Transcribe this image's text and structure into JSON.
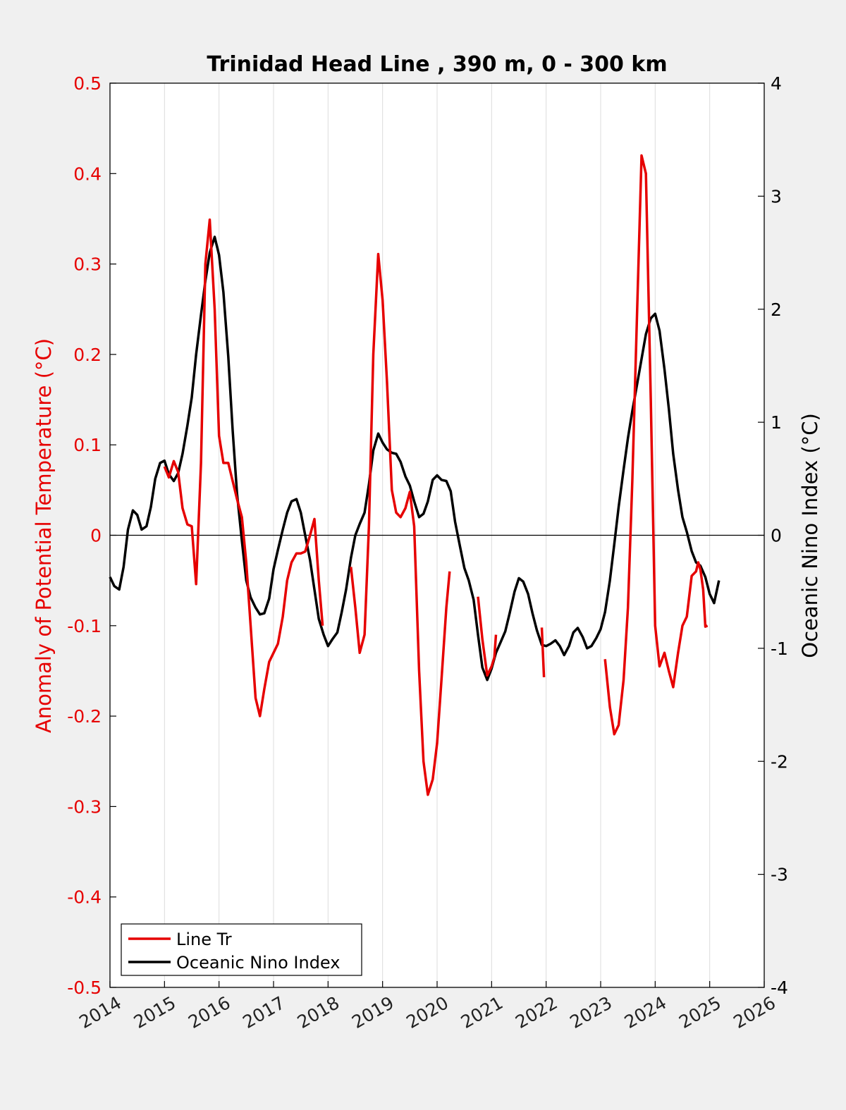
{
  "chart_data": {
    "type": "line",
    "title": "Trinidad Head Line , 390 m, 0 - 300 km",
    "ylabel_left": "Anomaly of Potential Temperature (°C)",
    "ylabel_right": "Oceanic Nino Index (°C)",
    "xlim": [
      2014,
      2026
    ],
    "ylim_left": [
      -0.5,
      0.5
    ],
    "ylim_right": [
      -4,
      4
    ],
    "x_ticks": [
      "2014",
      "2015",
      "2016",
      "2017",
      "2018",
      "2019",
      "2020",
      "2021",
      "2022",
      "2023",
      "2024",
      "2025",
      "2026"
    ],
    "y_left_ticks": [
      "0.5",
      "0.4",
      "0.3",
      "0.2",
      "0.1",
      "0",
      "-0.1",
      "-0.2",
      "-0.3",
      "-0.4",
      "-0.5"
    ],
    "y_right_ticks": [
      "4",
      "3",
      "2",
      "1",
      "0",
      "-1",
      "-2",
      "-3",
      "-4"
    ],
    "grid": "vertical",
    "legend_position": "bottom-left",
    "colors": {
      "line_tr": "#e60000",
      "oni": "#000000",
      "zero_line": "#000000",
      "grid": "#dcdcdc",
      "axes_bg": "#ffffff",
      "figure_bg": "#f0f0f0"
    },
    "series": [
      {
        "name": "Line Tr",
        "axis": "left",
        "segments": [
          [
            [
              2015.0,
              0.076
            ],
            [
              2015.08,
              0.064
            ],
            [
              2015.17,
              0.082
            ],
            [
              2015.25,
              0.07
            ],
            [
              2015.33,
              0.03
            ],
            [
              2015.42,
              0.012
            ],
            [
              2015.5,
              0.01
            ],
            [
              2015.58,
              -0.054
            ],
            [
              2015.67,
              0.08
            ],
            [
              2015.75,
              0.3
            ],
            [
              2015.83,
              0.349
            ],
            [
              2015.92,
              0.25
            ],
            [
              2016.0,
              0.11
            ],
            [
              2016.08,
              0.08
            ],
            [
              2016.17,
              0.08
            ],
            [
              2016.25,
              0.06
            ],
            [
              2016.33,
              0.04
            ],
            [
              2016.42,
              0.02
            ],
            [
              2016.5,
              -0.03
            ],
            [
              2016.58,
              -0.1
            ],
            [
              2016.67,
              -0.18
            ],
            [
              2016.75,
              -0.2
            ],
            [
              2016.83,
              -0.17
            ],
            [
              2016.92,
              -0.14
            ],
            [
              2017.0,
              -0.13
            ],
            [
              2017.08,
              -0.12
            ],
            [
              2017.17,
              -0.09
            ],
            [
              2017.25,
              -0.05
            ],
            [
              2017.33,
              -0.03
            ],
            [
              2017.42,
              -0.02
            ],
            [
              2017.5,
              -0.02
            ],
            [
              2017.58,
              -0.018
            ],
            [
              2017.67,
              0.0
            ],
            [
              2017.75,
              0.018
            ],
            [
              2017.83,
              -0.05
            ],
            [
              2017.9,
              -0.1
            ]
          ],
          [
            [
              2018.42,
              -0.035
            ],
            [
              2018.5,
              -0.08
            ],
            [
              2018.58,
              -0.13
            ],
            [
              2018.67,
              -0.11
            ],
            [
              2018.75,
              0.01
            ],
            [
              2018.83,
              0.2
            ],
            [
              2018.92,
              0.311
            ],
            [
              2019.0,
              0.26
            ],
            [
              2019.08,
              0.17
            ],
            [
              2019.17,
              0.05
            ],
            [
              2019.25,
              0.025
            ],
            [
              2019.33,
              0.02
            ],
            [
              2019.42,
              0.03
            ],
            [
              2019.5,
              0.048
            ],
            [
              2019.58,
              0.01
            ],
            [
              2019.67,
              -0.15
            ],
            [
              2019.75,
              -0.25
            ],
            [
              2019.83,
              -0.287
            ],
            [
              2019.92,
              -0.27
            ],
            [
              2020.0,
              -0.23
            ],
            [
              2020.08,
              -0.16
            ],
            [
              2020.17,
              -0.08
            ],
            [
              2020.23,
              -0.04
            ]
          ],
          [
            [
              2020.75,
              -0.068
            ],
            [
              2020.83,
              -0.115
            ],
            [
              2020.92,
              -0.155
            ],
            [
              2021.0,
              -0.145
            ],
            [
              2021.05,
              -0.135
            ],
            [
              2021.08,
              -0.11
            ]
          ],
          [
            [
              2021.92,
              -0.102
            ],
            [
              2021.96,
              -0.157
            ]
          ],
          [
            [
              2023.08,
              -0.137
            ],
            [
              2023.17,
              -0.19
            ],
            [
              2023.25,
              -0.22
            ],
            [
              2023.33,
              -0.21
            ],
            [
              2023.42,
              -0.16
            ],
            [
              2023.5,
              -0.08
            ],
            [
              2023.58,
              0.06
            ],
            [
              2023.67,
              0.25
            ],
            [
              2023.75,
              0.42
            ],
            [
              2023.83,
              0.4
            ],
            [
              2023.92,
              0.15
            ],
            [
              2024.0,
              -0.1
            ],
            [
              2024.08,
              -0.145
            ],
            [
              2024.17,
              -0.13
            ],
            [
              2024.25,
              -0.15
            ],
            [
              2024.33,
              -0.168
            ],
            [
              2024.42,
              -0.13
            ],
            [
              2024.5,
              -0.1
            ],
            [
              2024.58,
              -0.09
            ],
            [
              2024.67,
              -0.045
            ],
            [
              2024.75,
              -0.04
            ],
            [
              2024.79,
              -0.03
            ],
            [
              2024.83,
              -0.038
            ],
            [
              2024.88,
              -0.06
            ],
            [
              2024.92,
              -0.101
            ],
            [
              2024.96,
              -0.1
            ]
          ]
        ]
      },
      {
        "name": "Oceanic Nino Index",
        "axis": "right",
        "segments": [
          [
            [
              2014.0,
              -0.37
            ],
            [
              2014.08,
              -0.45
            ],
            [
              2014.17,
              -0.48
            ],
            [
              2014.25,
              -0.28
            ],
            [
              2014.33,
              0.05
            ],
            [
              2014.42,
              0.22
            ],
            [
              2014.5,
              0.18
            ],
            [
              2014.58,
              0.05
            ],
            [
              2014.67,
              0.08
            ],
            [
              2014.75,
              0.25
            ],
            [
              2014.83,
              0.5
            ],
            [
              2014.92,
              0.64
            ],
            [
              2015.0,
              0.66
            ],
            [
              2015.08,
              0.54
            ],
            [
              2015.17,
              0.48
            ],
            [
              2015.25,
              0.55
            ],
            [
              2015.33,
              0.72
            ],
            [
              2015.42,
              0.97
            ],
            [
              2015.5,
              1.22
            ],
            [
              2015.58,
              1.6
            ],
            [
              2015.67,
              1.95
            ],
            [
              2015.75,
              2.25
            ],
            [
              2015.83,
              2.5
            ],
            [
              2015.92,
              2.64
            ],
            [
              2016.0,
              2.48
            ],
            [
              2016.08,
              2.15
            ],
            [
              2016.17,
              1.58
            ],
            [
              2016.25,
              0.93
            ],
            [
              2016.33,
              0.37
            ],
            [
              2016.42,
              -0.05
            ],
            [
              2016.5,
              -0.4
            ],
            [
              2016.58,
              -0.55
            ],
            [
              2016.67,
              -0.64
            ],
            [
              2016.75,
              -0.7
            ],
            [
              2016.83,
              -0.69
            ],
            [
              2016.92,
              -0.56
            ],
            [
              2017.0,
              -0.3
            ],
            [
              2017.08,
              -0.13
            ],
            [
              2017.17,
              0.05
            ],
            [
              2017.25,
              0.2
            ],
            [
              2017.33,
              0.3
            ],
            [
              2017.42,
              0.32
            ],
            [
              2017.5,
              0.2
            ],
            [
              2017.58,
              0.0
            ],
            [
              2017.67,
              -0.22
            ],
            [
              2017.75,
              -0.48
            ],
            [
              2017.83,
              -0.74
            ],
            [
              2017.92,
              -0.88
            ],
            [
              2018.0,
              -0.98
            ],
            [
              2018.08,
              -0.92
            ],
            [
              2018.17,
              -0.86
            ],
            [
              2018.25,
              -0.68
            ],
            [
              2018.33,
              -0.48
            ],
            [
              2018.42,
              -0.2
            ],
            [
              2018.5,
              0.0
            ],
            [
              2018.58,
              0.1
            ],
            [
              2018.67,
              0.2
            ],
            [
              2018.75,
              0.45
            ],
            [
              2018.83,
              0.75
            ],
            [
              2018.92,
              0.9
            ],
            [
              2019.0,
              0.82
            ],
            [
              2019.08,
              0.76
            ],
            [
              2019.17,
              0.73
            ],
            [
              2019.25,
              0.72
            ],
            [
              2019.33,
              0.65
            ],
            [
              2019.42,
              0.52
            ],
            [
              2019.5,
              0.44
            ],
            [
              2019.58,
              0.3
            ],
            [
              2019.67,
              0.16
            ],
            [
              2019.75,
              0.19
            ],
            [
              2019.83,
              0.3
            ],
            [
              2019.92,
              0.49
            ],
            [
              2020.0,
              0.53
            ],
            [
              2020.08,
              0.49
            ],
            [
              2020.17,
              0.48
            ],
            [
              2020.25,
              0.39
            ],
            [
              2020.33,
              0.12
            ],
            [
              2020.42,
              -0.1
            ],
            [
              2020.5,
              -0.29
            ],
            [
              2020.58,
              -0.4
            ],
            [
              2020.67,
              -0.57
            ],
            [
              2020.75,
              -0.88
            ],
            [
              2020.83,
              -1.17
            ],
            [
              2020.92,
              -1.28
            ],
            [
              2021.0,
              -1.18
            ],
            [
              2021.08,
              -1.04
            ],
            [
              2021.17,
              -0.94
            ],
            [
              2021.25,
              -0.85
            ],
            [
              2021.33,
              -0.69
            ],
            [
              2021.42,
              -0.5
            ],
            [
              2021.5,
              -0.38
            ],
            [
              2021.58,
              -0.41
            ],
            [
              2021.67,
              -0.52
            ],
            [
              2021.75,
              -0.69
            ],
            [
              2021.83,
              -0.84
            ],
            [
              2021.92,
              -0.97
            ],
            [
              2022.0,
              -0.98
            ],
            [
              2022.08,
              -0.96
            ],
            [
              2022.17,
              -0.93
            ],
            [
              2022.25,
              -0.98
            ],
            [
              2022.33,
              -1.06
            ],
            [
              2022.42,
              -0.98
            ],
            [
              2022.5,
              -0.86
            ],
            [
              2022.58,
              -0.82
            ],
            [
              2022.67,
              -0.9
            ],
            [
              2022.75,
              -1.0
            ],
            [
              2022.83,
              -0.98
            ],
            [
              2022.92,
              -0.91
            ],
            [
              2023.0,
              -0.83
            ],
            [
              2023.08,
              -0.68
            ],
            [
              2023.17,
              -0.4
            ],
            [
              2023.25,
              -0.08
            ],
            [
              2023.33,
              0.25
            ],
            [
              2023.42,
              0.58
            ],
            [
              2023.5,
              0.86
            ],
            [
              2023.58,
              1.1
            ],
            [
              2023.67,
              1.34
            ],
            [
              2023.75,
              1.56
            ],
            [
              2023.83,
              1.78
            ],
            [
              2023.92,
              1.92
            ],
            [
              2024.0,
              1.96
            ],
            [
              2024.08,
              1.81
            ],
            [
              2024.17,
              1.47
            ],
            [
              2024.25,
              1.12
            ],
            [
              2024.33,
              0.72
            ],
            [
              2024.42,
              0.4
            ],
            [
              2024.5,
              0.16
            ],
            [
              2024.58,
              0.03
            ],
            [
              2024.67,
              -0.14
            ],
            [
              2024.75,
              -0.24
            ],
            [
              2024.83,
              -0.27
            ],
            [
              2024.92,
              -0.37
            ],
            [
              2025.0,
              -0.52
            ],
            [
              2025.08,
              -0.6
            ],
            [
              2025.17,
              -0.4
            ]
          ]
        ]
      }
    ]
  }
}
